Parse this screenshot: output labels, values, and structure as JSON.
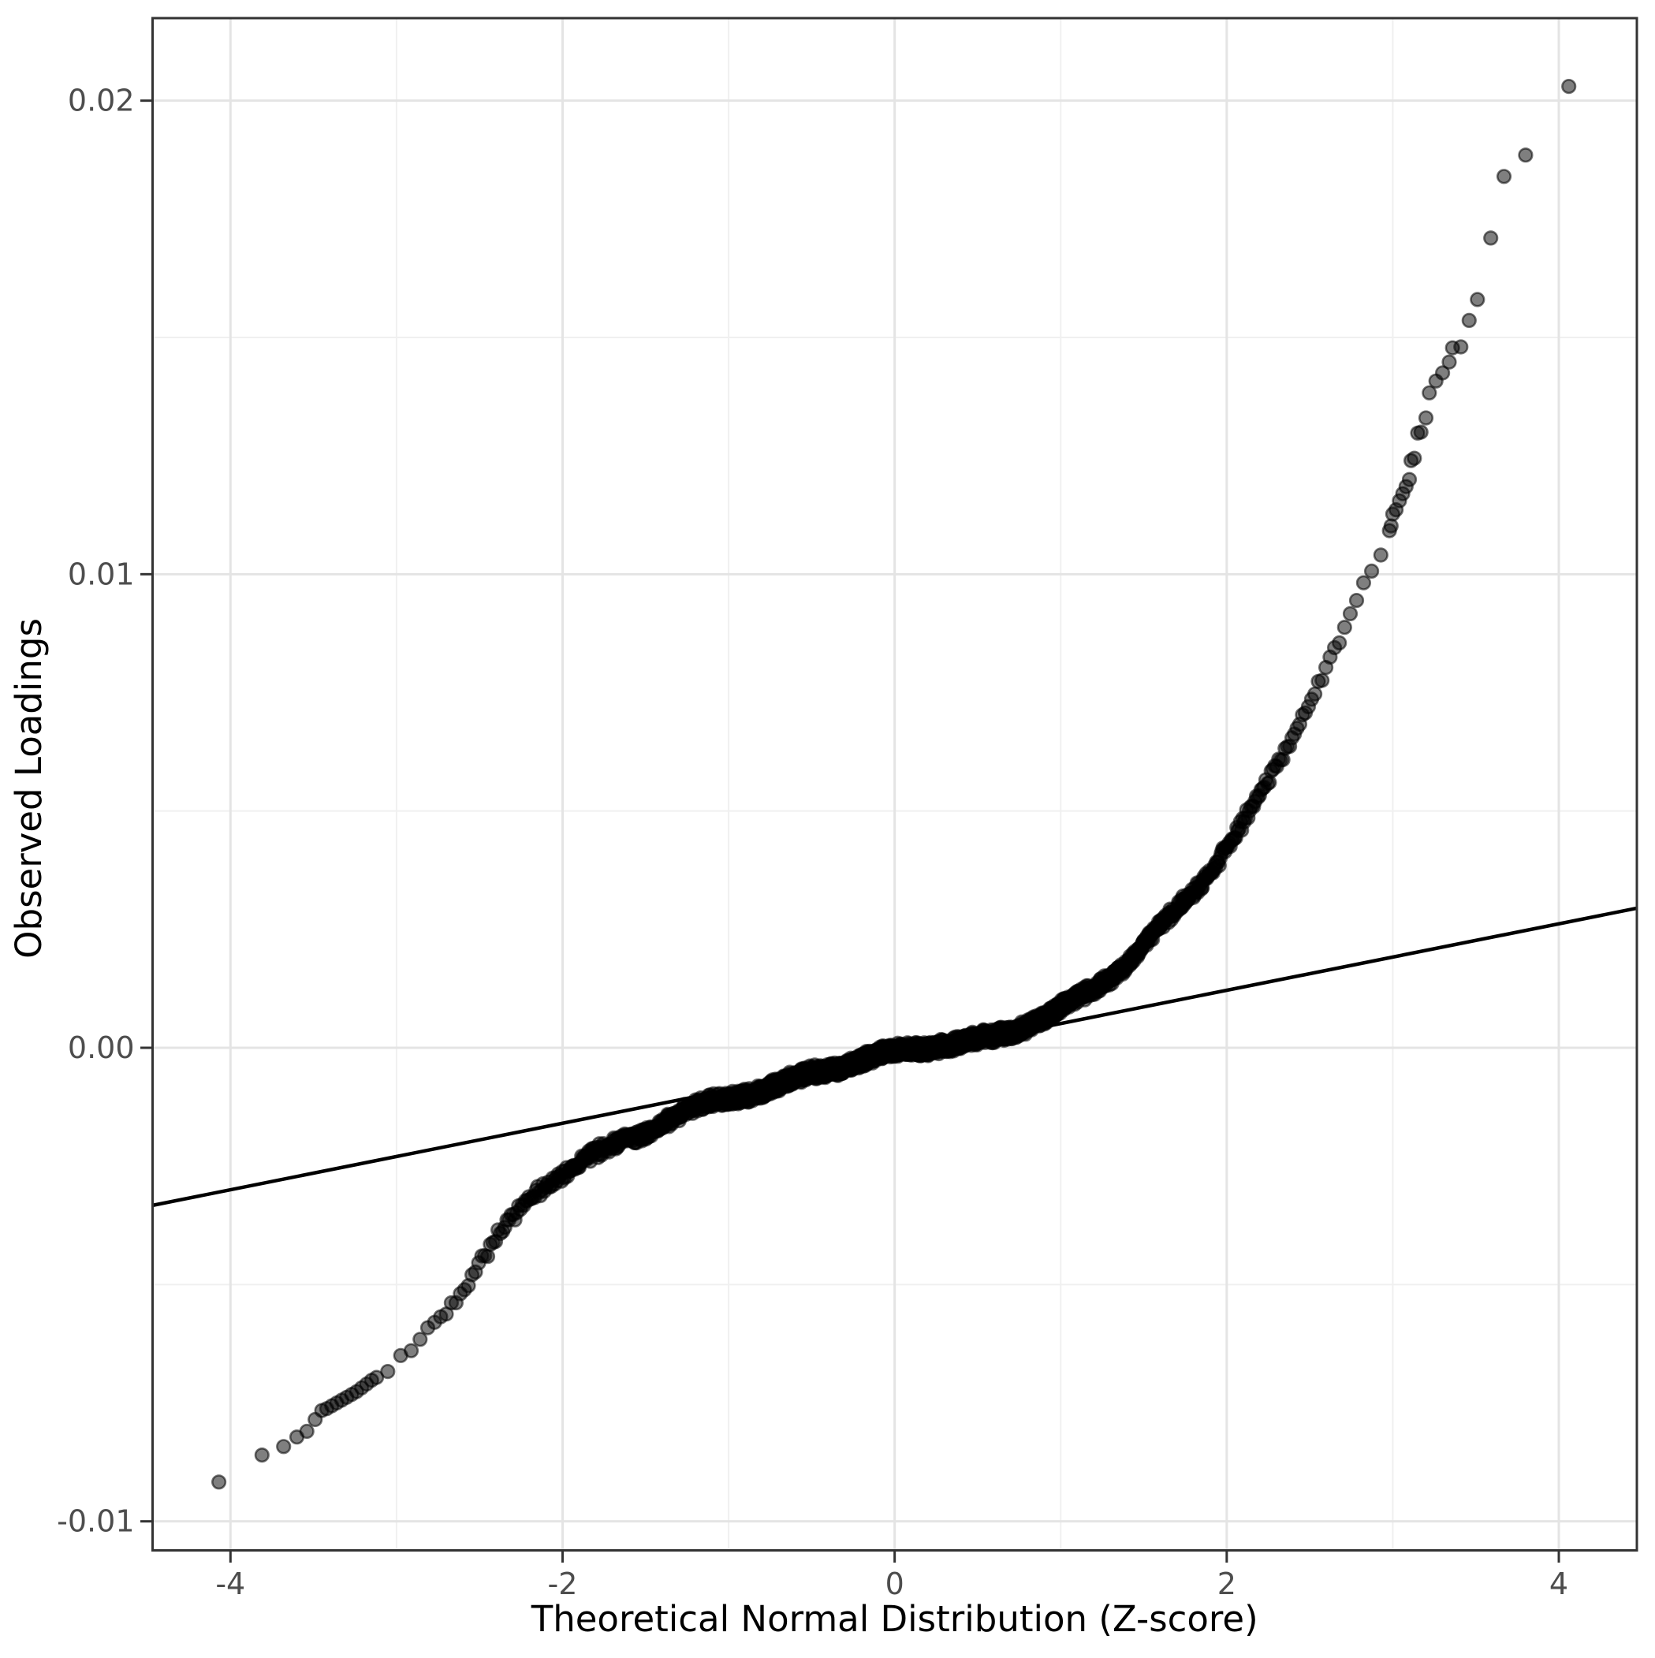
{
  "chart_data": {
    "type": "scatter",
    "subtype": "qq-plot",
    "title": "",
    "xlabel": "Theoretical Normal Distribution (Z-score)",
    "ylabel": "Observed Loadings",
    "x_axis": {
      "tick_values": [
        -4,
        -2,
        0,
        2,
        4
      ],
      "tick_labels": [
        "-4",
        "-2",
        "0",
        "2",
        "4"
      ],
      "minor_ticks": [
        -3,
        -1,
        1,
        3
      ],
      "range": [
        -4.47,
        4.47
      ],
      "grid": true
    },
    "y_axis": {
      "tick_values": [
        -0.01,
        0.0,
        0.01,
        0.02
      ],
      "tick_labels": [
        "-0.01",
        "0.00",
        "0.01",
        "0.02"
      ],
      "minor_ticks": [
        -0.005,
        0.005,
        0.015
      ],
      "range": [
        -0.0106,
        0.0217
      ],
      "grid": true
    },
    "reference_line": {
      "slope": 0.000702,
      "intercept": -0.00019,
      "color": "#000000",
      "width": 4.5
    },
    "qq_curve_control_points": [
      [
        -3.1,
        -0.0069
      ],
      [
        -3.0,
        -0.0066
      ],
      [
        -2.9,
        -0.00628
      ],
      [
        -2.8,
        -0.00592
      ],
      [
        -2.7,
        -0.00555
      ],
      [
        -2.6,
        -0.00506
      ],
      [
        -2.5,
        -0.0045
      ],
      [
        -2.4,
        -0.00405
      ],
      [
        -2.3,
        -0.00365
      ],
      [
        -2.2,
        -0.0033
      ],
      [
        -2.1,
        -0.00295
      ],
      [
        -2.0,
        -0.00263
      ],
      [
        -1.9,
        -0.00237
      ],
      [
        -1.8,
        -0.00218
      ],
      [
        -1.7,
        -0.00202
      ],
      [
        -1.6,
        -0.00187
      ],
      [
        -1.5,
        -0.00173
      ],
      [
        -1.4,
        -0.00157
      ],
      [
        -1.3,
        -0.00143
      ],
      [
        -1.2,
        -0.00131
      ],
      [
        -1.1,
        -0.00122
      ],
      [
        -1.0,
        -0.00113
      ],
      [
        -0.9,
        -0.00101
      ],
      [
        -0.8,
        -0.0009
      ],
      [
        -0.7,
        -0.00079
      ],
      [
        -0.6,
        -0.00063
      ],
      [
        -0.5,
        -0.00048
      ],
      [
        -0.4,
        -0.00039
      ],
      [
        -0.3,
        -0.00031
      ],
      [
        -0.2,
        -0.00024
      ],
      [
        -0.1,
        -0.00018
      ],
      [
        0.0,
        -0.00013
      ],
      [
        0.1,
        -9e-05
      ],
      [
        0.2,
        -4e-05
      ],
      [
        0.3,
        2e-05
      ],
      [
        0.4,
        8e-05
      ],
      [
        0.5,
        0.00016
      ],
      [
        0.6,
        0.00027
      ],
      [
        0.7,
        0.0004
      ],
      [
        0.8,
        0.00056
      ],
      [
        0.9,
        0.0007
      ],
      [
        1.0,
        0.00085
      ],
      [
        1.1,
        0.00103
      ],
      [
        1.2,
        0.00122
      ],
      [
        1.3,
        0.00144
      ],
      [
        1.4,
        0.00175
      ],
      [
        1.5,
        0.00215
      ],
      [
        1.6,
        0.00252
      ],
      [
        1.7,
        0.0029
      ],
      [
        1.8,
        0.00335
      ],
      [
        1.9,
        0.0038
      ],
      [
        2.0,
        0.0043
      ],
      [
        2.1,
        0.00482
      ],
      [
        2.2,
        0.00535
      ],
      [
        2.3,
        0.00595
      ],
      [
        2.4,
        0.00658
      ],
      [
        2.5,
        0.0073
      ],
      [
        2.6,
        0.008
      ],
      [
        2.7,
        0.0087
      ],
      [
        2.8,
        0.0095
      ],
      [
        2.9,
        0.01025
      ],
      [
        2.96,
        0.0107
      ]
    ],
    "dense_band": {
      "z_min": -3.1,
      "z_max": 2.96,
      "p_min": 0.0009676,
      "p_max": 0.9984618,
      "rendered_points": 3000,
      "jitter": 0.00016,
      "seed": 42
    },
    "lower_tail_points": [
      [
        -4.07,
        -0.00917
      ],
      [
        -3.81,
        -0.0086
      ],
      [
        -3.68,
        -0.00842
      ],
      [
        -3.6,
        -0.00822
      ],
      [
        -3.54,
        -0.0081
      ],
      [
        -3.49,
        -0.00785
      ],
      [
        -3.45,
        -0.00766
      ],
      [
        -3.42,
        -0.00762
      ],
      [
        -3.39,
        -0.00756
      ],
      [
        -3.36,
        -0.0075
      ],
      [
        -3.33,
        -0.00744
      ],
      [
        -3.3,
        -0.00738
      ],
      [
        -3.27,
        -0.00732
      ],
      [
        -3.24,
        -0.00726
      ],
      [
        -3.21,
        -0.00718
      ],
      [
        -3.18,
        -0.0071
      ],
      [
        -3.15,
        -0.00702
      ],
      [
        -3.12,
        -0.00696
      ]
    ],
    "upper_tail_points": [
      [
        2.98,
        0.01092
      ],
      [
        2.99,
        0.01102
      ],
      [
        3.0,
        0.01127
      ],
      [
        3.02,
        0.01136
      ],
      [
        3.04,
        0.01155
      ],
      [
        3.06,
        0.0117
      ],
      [
        3.08,
        0.01185
      ],
      [
        3.1,
        0.012
      ],
      [
        3.11,
        0.0124
      ],
      [
        3.13,
        0.01245
      ],
      [
        3.15,
        0.01298
      ],
      [
        3.17,
        0.013
      ],
      [
        3.2,
        0.0133
      ],
      [
        3.22,
        0.01383
      ],
      [
        3.26,
        0.01408
      ],
      [
        3.3,
        0.01425
      ],
      [
        3.34,
        0.01448
      ],
      [
        3.36,
        0.01478
      ],
      [
        3.41,
        0.0148
      ],
      [
        3.46,
        0.01536
      ],
      [
        3.51,
        0.0158
      ],
      [
        3.59,
        0.0171
      ],
      [
        3.67,
        0.0184
      ],
      [
        3.8,
        0.01885
      ],
      [
        4.06,
        0.0203
      ]
    ],
    "point_style": {
      "radius": 8.3,
      "fill": "#000000",
      "fill_opacity": 0.5,
      "stroke": "#000000",
      "stroke_opacity": 0.55,
      "stroke_width": 2.6
    },
    "grid_style": {
      "major_color": "#e4e4e4",
      "minor_color": "#f0f0f0",
      "background": "#ffffff",
      "border_color": "#333333"
    },
    "text_style": {
      "tick_label_color": "#4d4d4d",
      "axis_title_color": "#000000"
    }
  }
}
